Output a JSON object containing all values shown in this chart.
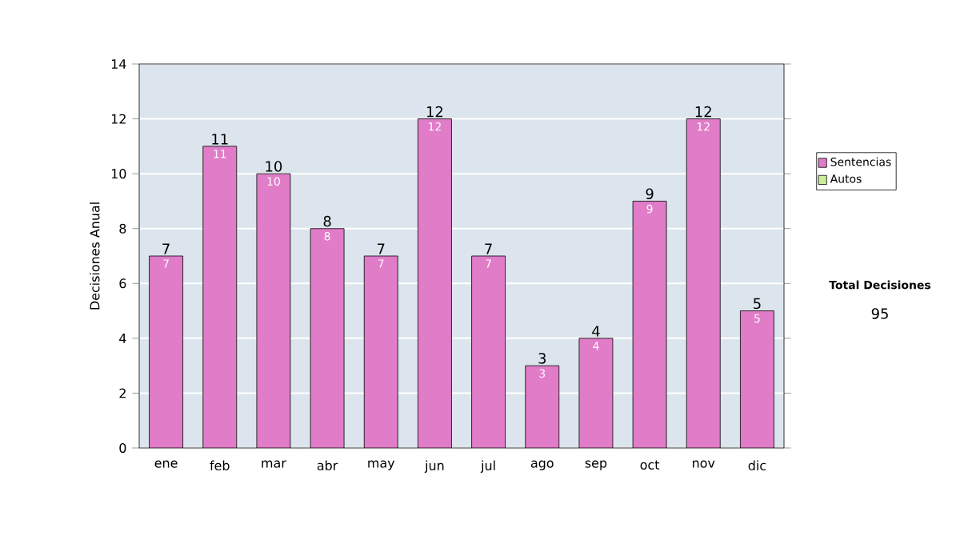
{
  "chart_data": {
    "type": "bar",
    "stacked": true,
    "ylabel": "Decisiones Anual",
    "categories": [
      "ene",
      "feb",
      "mar",
      "abr",
      "may",
      "jun",
      "jul",
      "ago",
      "sep",
      "oct",
      "nov",
      "dic"
    ],
    "series": [
      {
        "name": "Sentencias",
        "color": "#e07cc8",
        "values": [
          7,
          11,
          10,
          8,
          7,
          12,
          7,
          3,
          4,
          9,
          12,
          5
        ],
        "value_labels": [
          "7",
          "11",
          "10",
          "8",
          "7",
          "12",
          "7",
          "3",
          "4",
          "9",
          "12",
          "5"
        ]
      },
      {
        "name": "Autos",
        "color": "#ccee99",
        "values": [
          0,
          0,
          0,
          0,
          0,
          0,
          0,
          0,
          0,
          0,
          0,
          0
        ]
      }
    ],
    "totals": [
      "7",
      "11",
      "10",
      "8",
      "7",
      "12",
      "7",
      "3",
      "4",
      "9",
      "12",
      "5"
    ],
    "ylim": [
      0,
      14
    ],
    "yticks": [
      0,
      2,
      4,
      6,
      8,
      10,
      12,
      14
    ],
    "grid": "y",
    "legend": "right",
    "annotations": [
      "Total Decisiones",
      "95"
    ]
  }
}
